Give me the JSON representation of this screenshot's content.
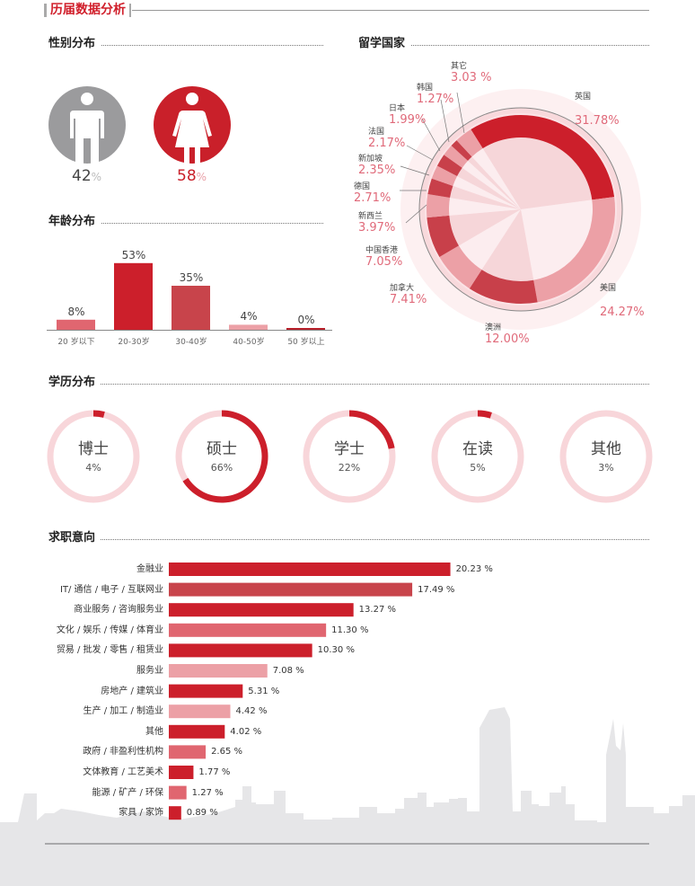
{
  "header": {
    "title": "历届数据分析"
  },
  "sections": {
    "gender": "性别分布",
    "country": "留学国家",
    "age": "年龄分布",
    "education": "学历分布",
    "job": "求职意向"
  },
  "colors": {
    "accent": "#cc1f2b",
    "gray": "#9b9b9d",
    "mid": "#c8444b",
    "pink": "#eca0a6",
    "light": "#f7d5d9",
    "skyline": "#e6e6e8"
  },
  "gender": {
    "male": {
      "icon": "male-person-icon",
      "value": "42",
      "unit": "%"
    },
    "female": {
      "icon": "female-person-icon",
      "value": "58",
      "unit": "%"
    }
  },
  "chart_data": [
    {
      "type": "pie",
      "title": "留学国家",
      "slices": [
        {
          "label": "英国",
          "value": 31.78,
          "text": "31.78%"
        },
        {
          "label": "美国",
          "value": 24.27,
          "text": "24.27%"
        },
        {
          "label": "澳洲",
          "value": 12.0,
          "text": "12.00%"
        },
        {
          "label": "加拿大",
          "value": 7.41,
          "text": "7.41%"
        },
        {
          "label": "中国香港",
          "value": 7.05,
          "text": "7.05%"
        },
        {
          "label": "新西兰",
          "value": 3.97,
          "text": "3.97%"
        },
        {
          "label": "德国",
          "value": 2.71,
          "text": "2.71%"
        },
        {
          "label": "新加坡",
          "value": 2.35,
          "text": "2.35%"
        },
        {
          "label": "法国",
          "value": 2.17,
          "text": "2.17%"
        },
        {
          "label": "日本",
          "value": 1.99,
          "text": "1.99%"
        },
        {
          "label": "韩国",
          "value": 1.27,
          "text": "1.27%"
        },
        {
          "label": "其它",
          "value": 3.03,
          "text": "3.03 %"
        }
      ]
    },
    {
      "type": "bar",
      "title": "年龄分布",
      "categories": [
        "20 岁以下",
        "20-30岁",
        "30-40岁",
        "40-50岁",
        "50 岁以上"
      ],
      "values": [
        8,
        53,
        35,
        4,
        0
      ],
      "labels": [
        "8%",
        "53%",
        "35%",
        "4%",
        "0%"
      ]
    },
    {
      "type": "pie",
      "title": "学历分布",
      "categories": [
        "博士",
        "硕士",
        "学士",
        "在读",
        "其他"
      ],
      "values": [
        4,
        66,
        22,
        5,
        3
      ],
      "labels": [
        "4%",
        "66%",
        "22%",
        "5%",
        "3%"
      ]
    },
    {
      "type": "bar",
      "orientation": "horizontal",
      "title": "求职意向",
      "categories": [
        "金融业",
        "IT/ 通信 / 电子 / 互联网业",
        "商业服务 / 咨询服务业",
        "文化 / 娱乐 / 传媒 / 体育业",
        "贸易 / 批发 / 零售 / 租赁业",
        "服务业",
        "房地产 / 建筑业",
        "生产 / 加工 / 制造业",
        "其他",
        "政府 / 非盈利性机构",
        "文体教育 / 工艺美术",
        "能源 / 矿产 / 环保",
        "家具 / 家饰"
      ],
      "values": [
        20.23,
        17.49,
        13.27,
        11.3,
        10.3,
        7.08,
        5.31,
        4.42,
        4.02,
        2.65,
        1.77,
        1.27,
        0.89
      ],
      "labels": [
        "20.23 %",
        "17.49 %",
        "13.27 %",
        "11.30 %",
        "10.30 %",
        "7.08 %",
        "5.31 %",
        "4.42 %",
        "4.02 %",
        "2.65 %",
        "1.77 %",
        "1.27 %",
        "0.89 %"
      ]
    }
  ]
}
